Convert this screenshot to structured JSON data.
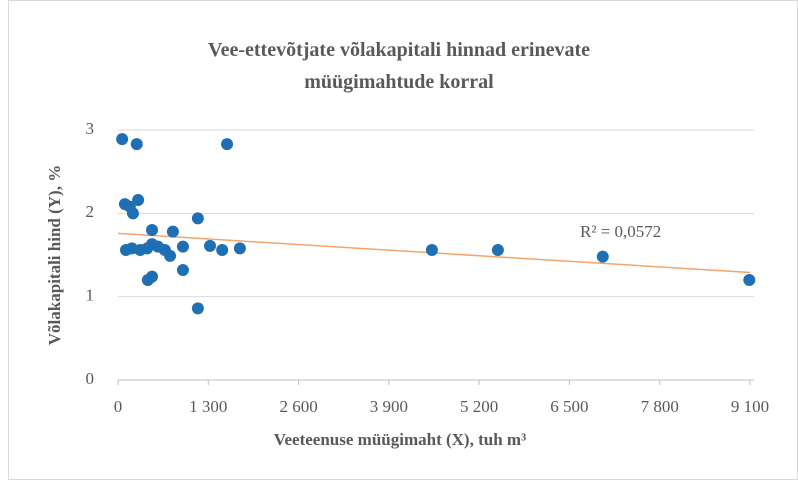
{
  "chart_data": {
    "type": "scatter",
    "title": "Vee-ettevõtjate võlakapitali hinnad erinevate müügimahtude korral",
    "x_label": "Veeteenuse müügimaht (X), tuh m³",
    "y_label": "Võlakapitali hind (Y), %",
    "annotation": "R² = 0,0572",
    "color": "#1f6fb5",
    "trendline": {
      "color": "#f4a46a",
      "x": [
        0,
        9100
      ],
      "y": [
        1.76,
        1.29
      ]
    },
    "x": [
      60,
      270,
      1570,
      100,
      170,
      215,
      290,
      1150,
      490,
      790,
      115,
      200,
      320,
      420,
      490,
      575,
      675,
      750,
      935,
      1325,
      1500,
      1755,
      430,
      490,
      935,
      1150,
      4520,
      5470,
      6980,
      9090
    ],
    "values": [
      2.89,
      2.83,
      2.83,
      2.11,
      2.08,
      2.0,
      2.16,
      1.94,
      1.8,
      1.78,
      1.56,
      1.58,
      1.56,
      1.58,
      1.63,
      1.6,
      1.56,
      1.49,
      1.6,
      1.61,
      1.56,
      1.58,
      1.2,
      1.24,
      1.32,
      0.86,
      1.56,
      1.56,
      1.48,
      1.2
    ],
    "xlim": [
      0,
      9100
    ],
    "ylim": [
      0,
      3
    ],
    "xticks": [
      0,
      {
        "value": 1300,
        "label": "1 300"
      },
      {
        "value": 2600,
        "label": "2 600"
      },
      {
        "value": 3900,
        "label": "3 900"
      },
      {
        "value": 5200,
        "label": "5 200"
      },
      {
        "value": 6500,
        "label": "6 500"
      },
      {
        "value": 7800,
        "label": "7 800"
      },
      {
        "value": 9100,
        "label": "9 100"
      }
    ],
    "yticks": [
      0,
      1,
      2,
      3
    ],
    "grid": true
  }
}
